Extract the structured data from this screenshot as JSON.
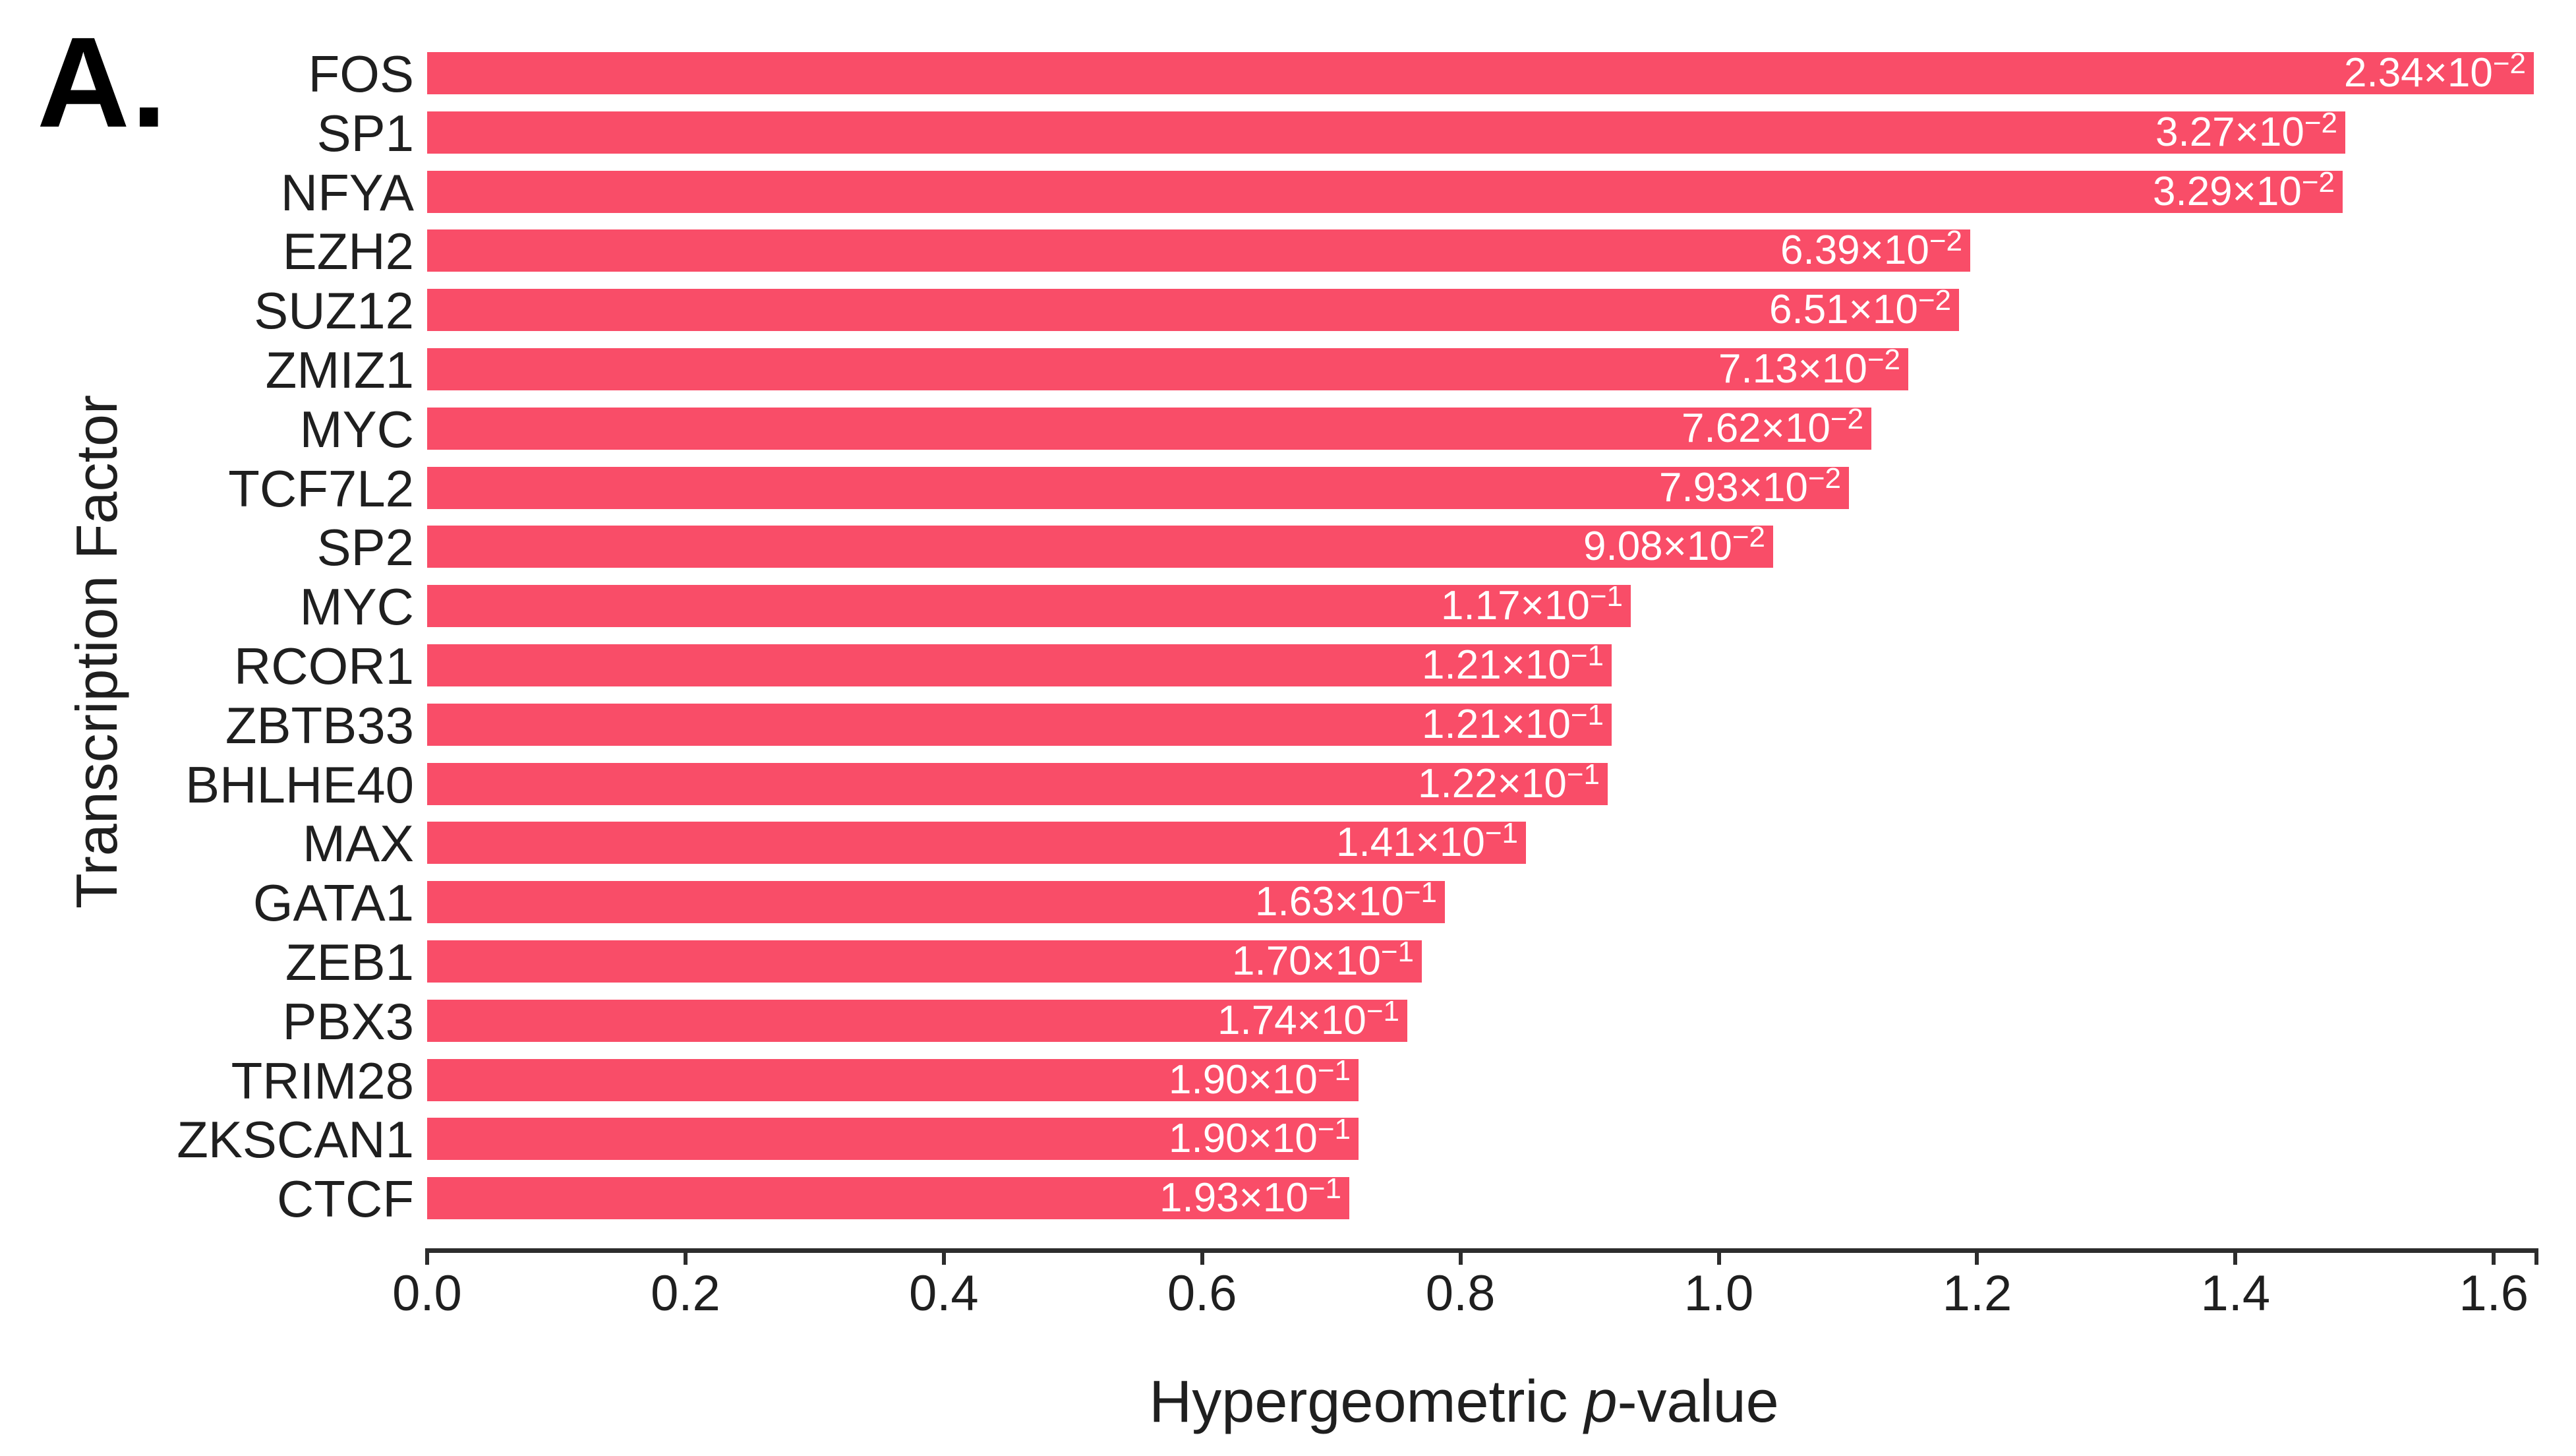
{
  "panel_label": "A.",
  "axes": {
    "y_title": "Transcription Factor",
    "x_title_prefix": "Hypergeometric ",
    "x_title_italic": "p",
    "x_title_suffix": "-value",
    "x_ticks": [
      "0.0",
      "0.2",
      "0.4",
      "0.6",
      "0.8",
      "1.0",
      "1.2",
      "1.4",
      "1.6"
    ]
  },
  "format": {
    "times_ten": "×10"
  },
  "colors": {
    "bar": "#F94D68",
    "axis": "#2d2d2d",
    "text": "#1f1f1f",
    "value_label": "#ffffff",
    "background": "#ffffff"
  },
  "chart_data": {
    "type": "bar",
    "orientation": "horizontal",
    "xlabel": "Hypergeometric p-value",
    "ylabel": "Transcription Factor",
    "xlim": [
      0,
      1.633
    ],
    "x_tick_values": [
      0.0,
      0.2,
      0.4,
      0.6,
      0.8,
      1.0,
      1.2,
      1.4,
      1.6
    ],
    "grid": false,
    "legend": false,
    "note": "Bar lengths correspond to -log10 of the hypergeometric p-value; in-bar labels show the raw p-values.",
    "rows": [
      {
        "factor": "FOS",
        "p_mantissa": "2.34",
        "p_exponent": "−2",
        "p_value": 0.0234,
        "bar_length": 1.631
      },
      {
        "factor": "SP1",
        "p_mantissa": "3.27",
        "p_exponent": "−2",
        "p_value": 0.0327,
        "bar_length": 1.485
      },
      {
        "factor": "NFYA",
        "p_mantissa": "3.29",
        "p_exponent": "−2",
        "p_value": 0.0329,
        "bar_length": 1.483
      },
      {
        "factor": "EZH2",
        "p_mantissa": "6.39",
        "p_exponent": "−2",
        "p_value": 0.0639,
        "bar_length": 1.195
      },
      {
        "factor": "SUZ12",
        "p_mantissa": "6.51",
        "p_exponent": "−2",
        "p_value": 0.0651,
        "bar_length": 1.186
      },
      {
        "factor": "ZMIZ1",
        "p_mantissa": "7.13",
        "p_exponent": "−2",
        "p_value": 0.0713,
        "bar_length": 1.147
      },
      {
        "factor": "MYC",
        "p_mantissa": "7.62",
        "p_exponent": "−2",
        "p_value": 0.0762,
        "bar_length": 1.118
      },
      {
        "factor": "TCF7L2",
        "p_mantissa": "7.93",
        "p_exponent": "−2",
        "p_value": 0.0793,
        "bar_length": 1.101
      },
      {
        "factor": "SP2",
        "p_mantissa": "9.08",
        "p_exponent": "−2",
        "p_value": 0.0908,
        "bar_length": 1.042
      },
      {
        "factor": "MYC",
        "p_mantissa": "1.17",
        "p_exponent": "−1",
        "p_value": 0.117,
        "bar_length": 0.932
      },
      {
        "factor": "RCOR1",
        "p_mantissa": "1.21",
        "p_exponent": "−1",
        "p_value": 0.121,
        "bar_length": 0.917
      },
      {
        "factor": "ZBTB33",
        "p_mantissa": "1.21",
        "p_exponent": "−1",
        "p_value": 0.121,
        "bar_length": 0.917
      },
      {
        "factor": "BHLHE40",
        "p_mantissa": "1.22",
        "p_exponent": "−1",
        "p_value": 0.122,
        "bar_length": 0.914
      },
      {
        "factor": "MAX",
        "p_mantissa": "1.41",
        "p_exponent": "−1",
        "p_value": 0.141,
        "bar_length": 0.851
      },
      {
        "factor": "GATA1",
        "p_mantissa": "1.63",
        "p_exponent": "−1",
        "p_value": 0.163,
        "bar_length": 0.788
      },
      {
        "factor": "ZEB1",
        "p_mantissa": "1.70",
        "p_exponent": "−1",
        "p_value": 0.17,
        "bar_length": 0.77
      },
      {
        "factor": "PBX3",
        "p_mantissa": "1.74",
        "p_exponent": "−1",
        "p_value": 0.174,
        "bar_length": 0.759
      },
      {
        "factor": "TRIM28",
        "p_mantissa": "1.90",
        "p_exponent": "−1",
        "p_value": 0.19,
        "bar_length": 0.721
      },
      {
        "factor": "ZKSCAN1",
        "p_mantissa": "1.90",
        "p_exponent": "−1",
        "p_value": 0.19,
        "bar_length": 0.721
      },
      {
        "factor": "CTCF",
        "p_mantissa": "1.93",
        "p_exponent": "−1",
        "p_value": 0.193,
        "bar_length": 0.714
      }
    ]
  }
}
